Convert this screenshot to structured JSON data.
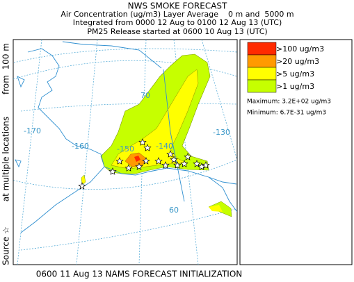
{
  "header": {
    "title": "NWS SMOKE FORECAST",
    "lines": [
      "Air Concentration (ug/m3) Layer Average    0 m and  5000 m",
      "Integrated from 0000 12 Aug to 0100 12 Aug 13 (UTC)",
      "PM25 Release started at 0600 10 Aug 13 (UTC)"
    ]
  },
  "side_label": [
    "Source ☆",
    "at multiple locations",
    "from  100 m"
  ],
  "map": {
    "grid_labels": [
      "-170",
      "-160",
      "-150",
      "-140",
      "-130",
      "70",
      "60"
    ]
  },
  "legend": {
    "items": [
      {
        "label": ">100 ug/m3",
        "color": "#ff2a00"
      },
      {
        "label": ">20 ug/m3",
        "color": "#ff9a00"
      },
      {
        "label": ">5 ug/m3",
        "color": "#ffff00"
      },
      {
        "label": ">1 ug/m3",
        "color": "#c6ff00"
      }
    ],
    "maximum": "Maximum: 3.2E+02 ug/m3",
    "minimum": "Minimum: 6.7E-31 ug/m3"
  },
  "footer": "0600 11 Aug 13 NAMS FORECAST INITIALIZATION"
}
